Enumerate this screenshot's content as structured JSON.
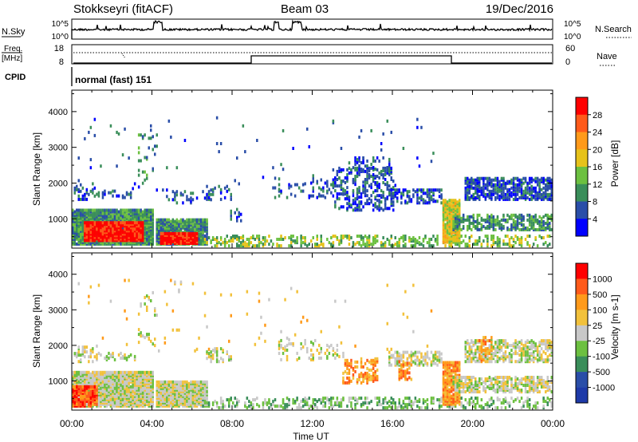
{
  "header": {
    "station": "Stokkseyri (fitACF)",
    "beam": "Beam 03",
    "date": "19/Dec/2016"
  },
  "panels": {
    "nsky_label": "N.Sky",
    "nsky_ticks": [
      "10^5",
      "10^0"
    ],
    "nsearch_label": "N.Search",
    "nsearch_ticks": [
      "10^5",
      "10^0"
    ],
    "freq_label_1": "Freq.",
    "freq_label_2": "[MHz]",
    "freq_ticks": [
      "18",
      "8"
    ],
    "nave_label": "Nave",
    "nave_ticks": [
      "60",
      "0"
    ],
    "cpid_label": "CPID",
    "cpid_text": "normal (fast) 151"
  },
  "colors": {
    "power": [
      "#0000ff",
      "#2a4ea8",
      "#3a8e5a",
      "#6cc040",
      "#e6c21a",
      "#ff9a1a",
      "#ff5a1a",
      "#ff0000"
    ],
    "velocity": [
      "#ff0000",
      "#ff5a1a",
      "#ff9a1a",
      "#f2c13b",
      "#c8c8c8",
      "#6cc040",
      "#3a8e5a",
      "#2a4ea8",
      "#1e3aa8"
    ]
  },
  "chart_data": [
    {
      "type": "heatmap",
      "name": "power",
      "ylabel": "Slant Range [km]",
      "ylim": [
        180,
        4600
      ],
      "yticks": [
        "4000",
        "3000",
        "2000",
        "1000"
      ],
      "colorbar_label": "Power [dB]",
      "colorbar_ticks": [
        "28",
        "24",
        "20",
        "16",
        "12",
        "8",
        "4"
      ],
      "xlim_hours": [
        0,
        24
      ],
      "regions": [
        {
          "t0": 0.0,
          "t1": 4.1,
          "r0": 250,
          "r1": 1200,
          "bin": 2,
          "density": 0.96
        },
        {
          "t0": 4.2,
          "t1": 6.7,
          "r0": 250,
          "r1": 950,
          "bin": 2,
          "density": 0.93
        },
        {
          "t0": 0.6,
          "t1": 3.6,
          "r0": 350,
          "r1": 850,
          "bin": 7,
          "density": 0.95
        },
        {
          "t0": 4.4,
          "t1": 6.2,
          "r0": 270,
          "r1": 550,
          "bin": 7,
          "density": 0.95
        },
        {
          "t0": 0.1,
          "t1": 1.2,
          "r0": 1500,
          "r1": 1950,
          "bin": 1,
          "density": 0.3
        },
        {
          "t0": 1.2,
          "t1": 3.2,
          "r0": 1550,
          "r1": 1750,
          "bin": 1,
          "density": 0.25
        },
        {
          "t0": 3.3,
          "t1": 4.2,
          "r0": 1950,
          "r1": 3450,
          "bin": 2,
          "density": 0.06
        },
        {
          "t0": 4.2,
          "t1": 6.9,
          "r0": 1400,
          "r1": 1800,
          "bin": 1,
          "density": 0.1
        },
        {
          "t0": 6.7,
          "t1": 7.9,
          "r0": 1500,
          "r1": 1900,
          "bin": 1,
          "density": 0.25
        },
        {
          "t0": 6.5,
          "t1": 24.0,
          "r0": 200,
          "r1": 500,
          "bin": 3,
          "density": 0.3
        },
        {
          "t0": 7.8,
          "t1": 8.4,
          "r0": 900,
          "r1": 1300,
          "bin": 1,
          "density": 0.25
        },
        {
          "t0": 10.0,
          "t1": 13.5,
          "r0": 1550,
          "r1": 2100,
          "bin": 1,
          "density": 0.15
        },
        {
          "t0": 13.0,
          "t1": 16.0,
          "r0": 1200,
          "r1": 2400,
          "bin": 1,
          "density": 0.3
        },
        {
          "t0": 14.1,
          "t1": 15.9,
          "r0": 2300,
          "r1": 2700,
          "bin": 1,
          "density": 0.18
        },
        {
          "t0": 15.8,
          "t1": 18.5,
          "r0": 1400,
          "r1": 1800,
          "bin": 1,
          "density": 0.45
        },
        {
          "t0": 18.5,
          "t1": 19.4,
          "r0": 300,
          "r1": 1500,
          "bin": 4,
          "density": 0.85
        },
        {
          "t0": 19.0,
          "t1": 24.0,
          "r0": 650,
          "r1": 1100,
          "bin": 2,
          "density": 0.5
        },
        {
          "t0": 19.6,
          "t1": 24.0,
          "r0": 1500,
          "r1": 2100,
          "bin": 1,
          "density": 0.6
        },
        {
          "t0": 0.3,
          "t1": 18.0,
          "r0": 1800,
          "r1": 3800,
          "bin": 1,
          "density": 0.01
        }
      ]
    },
    {
      "type": "heatmap",
      "name": "velocity",
      "ylabel": "Slant Range [km]",
      "ylim": [
        180,
        4600
      ],
      "yticks": [
        "4000",
        "3000",
        "2000",
        "1000"
      ],
      "colorbar_label": "Velocity [m s-1]",
      "colorbar_ticks": [
        "1000",
        "500",
        "100",
        "25",
        "-25",
        "-100",
        "-500",
        "-1000"
      ],
      "xlabel": "Time UT",
      "xticks": [
        "00:00",
        "04:00",
        "08:00",
        "12:00",
        "16:00",
        "20:00",
        "00:00"
      ],
      "xlim_hours": [
        0,
        24
      ],
      "regions": [
        {
          "t0": 0.0,
          "t1": 4.1,
          "r0": 250,
          "r1": 1200,
          "bin": 4,
          "density": 0.96
        },
        {
          "t0": 4.2,
          "t1": 6.7,
          "r0": 250,
          "r1": 950,
          "bin": 4,
          "density": 0.93
        },
        {
          "t0": 0.0,
          "t1": 1.3,
          "r0": 250,
          "r1": 800,
          "bin": 1,
          "density": 0.85
        },
        {
          "t0": 0.1,
          "t1": 1.2,
          "r0": 1500,
          "r1": 1950,
          "bin": 4,
          "density": 0.3
        },
        {
          "t0": 1.2,
          "t1": 3.2,
          "r0": 1550,
          "r1": 1750,
          "bin": 4,
          "density": 0.25
        },
        {
          "t0": 3.3,
          "t1": 4.2,
          "r0": 1950,
          "r1": 3450,
          "bin": 4,
          "density": 0.06
        },
        {
          "t0": 6.7,
          "t1": 7.9,
          "r0": 1500,
          "r1": 1900,
          "bin": 4,
          "density": 0.25
        },
        {
          "t0": 6.5,
          "t1": 24.0,
          "r0": 200,
          "r1": 500,
          "bin": 5,
          "density": 0.3
        },
        {
          "t0": 10.0,
          "t1": 13.5,
          "r0": 1550,
          "r1": 2100,
          "bin": 4,
          "density": 0.15
        },
        {
          "t0": 13.5,
          "t1": 15.2,
          "r0": 900,
          "r1": 1600,
          "bin": 2,
          "density": 0.35
        },
        {
          "t0": 15.8,
          "t1": 18.5,
          "r0": 1400,
          "r1": 1800,
          "bin": 4,
          "density": 0.45
        },
        {
          "t0": 16.3,
          "t1": 17.0,
          "r0": 1000,
          "r1": 1500,
          "bin": 2,
          "density": 0.4
        },
        {
          "t0": 18.5,
          "t1": 19.4,
          "r0": 300,
          "r1": 1500,
          "bin": 2,
          "density": 0.8
        },
        {
          "t0": 19.0,
          "t1": 24.0,
          "r0": 650,
          "r1": 1100,
          "bin": 4,
          "density": 0.55
        },
        {
          "t0": 19.6,
          "t1": 24.0,
          "r0": 1500,
          "r1": 2100,
          "bin": 4,
          "density": 0.55
        },
        {
          "t0": 20.3,
          "t1": 21.0,
          "r0": 1500,
          "r1": 2200,
          "bin": 2,
          "density": 0.35
        },
        {
          "t0": 0.3,
          "t1": 18.0,
          "r0": 1800,
          "r1": 3800,
          "bin": 3,
          "density": 0.01
        }
      ]
    }
  ]
}
